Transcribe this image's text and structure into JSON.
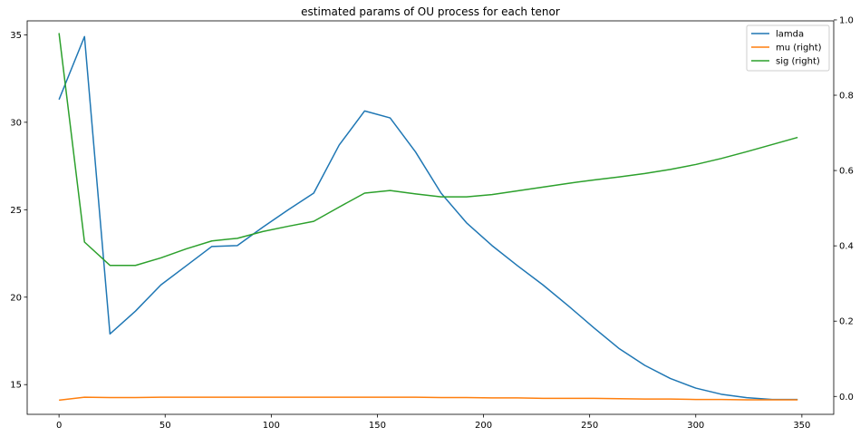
{
  "chart_data": {
    "type": "line",
    "title": "estimated params of OU process for each tenor",
    "xlabel": "",
    "ylabel": "",
    "xlim": [
      -15,
      365
    ],
    "ylim_left": [
      13.3,
      35.8
    ],
    "ylim_right": [
      -0.0475,
      0.9975
    ],
    "x_ticks": [
      0,
      50,
      100,
      150,
      200,
      250,
      300,
      350
    ],
    "y_left_ticks": [
      15,
      20,
      25,
      30,
      35
    ],
    "y_right_ticks": [
      0.0,
      0.2,
      0.4,
      0.6,
      0.8,
      1.0
    ],
    "grid": false,
    "legend_position": "top-right",
    "series": [
      {
        "name": "lamda",
        "axis": "left",
        "color": "#1f77b4",
        "x": [
          0,
          12,
          24,
          36,
          48,
          60,
          72,
          84,
          96,
          108,
          120,
          132,
          144,
          156,
          168,
          180,
          192,
          204,
          216,
          228,
          240,
          252,
          264,
          276,
          288,
          300,
          312,
          324,
          336,
          348
        ],
        "y": [
          31.3,
          34.9,
          17.9,
          19.2,
          20.7,
          21.8,
          22.9,
          22.95,
          24.0,
          25.0,
          25.95,
          28.7,
          30.65,
          30.25,
          28.3,
          25.95,
          24.25,
          22.95,
          21.8,
          20.7,
          19.5,
          18.25,
          17.05,
          16.1,
          15.35,
          14.8,
          14.45,
          14.25,
          14.15,
          14.15
        ]
      },
      {
        "name": "mu (right)",
        "axis": "right",
        "color": "#ff7f0e",
        "x": [
          0,
          12,
          24,
          36,
          48,
          60,
          72,
          84,
          96,
          108,
          120,
          132,
          144,
          156,
          168,
          180,
          192,
          204,
          216,
          228,
          240,
          252,
          264,
          276,
          288,
          300,
          312,
          324,
          336,
          348
        ],
        "y": [
          -0.01,
          -0.002,
          -0.003,
          -0.003,
          -0.002,
          -0.002,
          -0.002,
          -0.002,
          -0.002,
          -0.002,
          -0.002,
          -0.002,
          -0.002,
          -0.002,
          -0.002,
          -0.003,
          -0.003,
          -0.004,
          -0.004,
          -0.005,
          -0.005,
          -0.005,
          -0.006,
          -0.007,
          -0.007,
          -0.008,
          -0.008,
          -0.009,
          -0.009,
          -0.009
        ]
      },
      {
        "name": "sig (right)",
        "axis": "right",
        "color": "#2ca02c",
        "x": [
          0,
          12,
          24,
          36,
          48,
          60,
          72,
          84,
          96,
          108,
          120,
          132,
          144,
          156,
          168,
          180,
          192,
          204,
          216,
          228,
          240,
          252,
          264,
          276,
          288,
          300,
          312,
          324,
          336,
          348
        ],
        "y": [
          0.965,
          0.41,
          0.348,
          0.348,
          0.368,
          0.392,
          0.413,
          0.42,
          0.438,
          0.452,
          0.465,
          0.503,
          0.54,
          0.547,
          0.538,
          0.53,
          0.53,
          0.536,
          0.546,
          0.556,
          0.566,
          0.575,
          0.583,
          0.592,
          0.603,
          0.616,
          0.632,
          0.65,
          0.669,
          0.688
        ]
      }
    ]
  }
}
